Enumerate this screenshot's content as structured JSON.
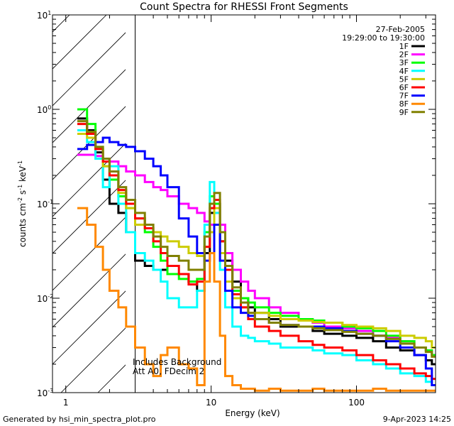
{
  "chart_data": {
    "type": "line",
    "title": "Count Spectra for RHESSI Front Segments",
    "xlabel": "Energy (keV)",
    "ylabel": "counts cm",
    "ylabel_sup1": "-2",
    "ylabel_mid": " s",
    "ylabel_sup2": "-1",
    "ylabel_end": " keV",
    "ylabel_sup3": "-1",
    "x_scale": "log",
    "y_scale": "log",
    "xlim": [
      0.81,
      350
    ],
    "ylim": [
      0.001,
      10
    ],
    "x_ticks": [
      {
        "value": 1,
        "label": "1"
      },
      {
        "value": 10,
        "label": "10"
      },
      {
        "value": 100,
        "label": "100"
      }
    ],
    "y_ticks": [
      {
        "value": 10,
        "base": "10",
        "exp": "1"
      },
      {
        "value": 1,
        "base": "10",
        "exp": "0"
      },
      {
        "value": 0.1,
        "base": "10",
        "exp": "-1"
      },
      {
        "value": 0.01,
        "base": "10",
        "exp": "-2"
      },
      {
        "value": 0.001,
        "base": "10",
        "exp": "-3"
      }
    ],
    "date": "27-Feb-2005",
    "time_range": "19:29:00 to 19:30:00",
    "annotation_lines": [
      "Includes Background",
      "Att A0, FDecim 2"
    ],
    "hatched_region_end": 3,
    "series": [
      {
        "name": "1F",
        "color": "#000000",
        "x": [
          1.2,
          1.4,
          1.6,
          1.8,
          2.0,
          2.3,
          2.6,
          3.0,
          3.5,
          4.0,
          4.5,
          5.0,
          6.0,
          7.0,
          8.0,
          9.0,
          9.8,
          10.5,
          11.5,
          12.5,
          14,
          16,
          18,
          20,
          25,
          30,
          40,
          50,
          60,
          80,
          100,
          130,
          160,
          200,
          250,
          300,
          330
        ],
        "y": [
          0.8,
          0.6,
          0.35,
          0.18,
          0.1,
          0.08,
          0.05,
          0.025,
          0.022,
          0.02,
          0.02,
          0.018,
          0.018,
          0.015,
          0.012,
          0.03,
          0.08,
          0.1,
          0.04,
          0.025,
          0.015,
          0.01,
          0.008,
          0.007,
          0.006,
          0.005,
          0.005,
          0.0045,
          0.0042,
          0.004,
          0.0038,
          0.0035,
          0.003,
          0.0028,
          0.0025,
          0.0022,
          0.002
        ]
      },
      {
        "name": "2F",
        "color": "#ff00ff",
        "x": [
          1.2,
          1.4,
          1.6,
          1.8,
          2.0,
          2.3,
          2.6,
          3.0,
          3.5,
          4.0,
          4.5,
          5.0,
          6.0,
          7.0,
          8.0,
          9.0,
          9.8,
          10.5,
          11.5,
          12.5,
          14,
          16,
          18,
          20,
          25,
          30,
          40,
          50,
          60,
          80,
          100,
          130,
          160,
          200,
          250,
          300,
          330
        ],
        "y": [
          0.33,
          0.33,
          0.32,
          0.3,
          0.28,
          0.25,
          0.22,
          0.2,
          0.17,
          0.15,
          0.14,
          0.12,
          0.1,
          0.09,
          0.08,
          0.065,
          0.06,
          0.08,
          0.06,
          0.03,
          0.02,
          0.015,
          0.012,
          0.01,
          0.008,
          0.007,
          0.006,
          0.0055,
          0.005,
          0.0048,
          0.0045,
          0.004,
          0.0038,
          0.0035,
          0.003,
          0.0028,
          0.0025
        ]
      },
      {
        "name": "3F",
        "color": "#00ff00",
        "x": [
          1.2,
          1.4,
          1.6,
          1.8,
          2.0,
          2.3,
          2.6,
          3.0,
          3.5,
          4.0,
          4.5,
          5.0,
          6.0,
          7.0,
          8.0,
          9.0,
          9.8,
          10.5,
          11.5,
          12.5,
          14,
          16,
          18,
          20,
          25,
          30,
          40,
          50,
          60,
          80,
          100,
          130,
          160,
          200,
          250,
          300,
          330
        ],
        "y": [
          1.0,
          0.7,
          0.4,
          0.25,
          0.18,
          0.12,
          0.09,
          0.07,
          0.05,
          0.035,
          0.025,
          0.018,
          0.016,
          0.015,
          0.016,
          0.05,
          0.12,
          0.1,
          0.04,
          0.02,
          0.012,
          0.01,
          0.009,
          0.008,
          0.007,
          0.0065,
          0.006,
          0.0058,
          0.0055,
          0.005,
          0.0048,
          0.0045,
          0.004,
          0.0035,
          0.003,
          0.0028,
          0.0025
        ]
      },
      {
        "name": "4F",
        "color": "#00ffff",
        "x": [
          1.2,
          1.4,
          1.6,
          1.8,
          2.0,
          2.3,
          2.6,
          3.0,
          3.5,
          4.0,
          4.5,
          5.0,
          6.0,
          7.0,
          8.0,
          9.0,
          9.8,
          10.5,
          11.5,
          12.5,
          14,
          16,
          18,
          20,
          25,
          30,
          40,
          50,
          60,
          80,
          100,
          130,
          160,
          200,
          250,
          300,
          330
        ],
        "y": [
          0.6,
          0.45,
          0.3,
          0.15,
          0.25,
          0.1,
          0.05,
          0.03,
          0.025,
          0.02,
          0.015,
          0.01,
          0.008,
          0.008,
          0.012,
          0.06,
          0.17,
          0.08,
          0.02,
          0.008,
          0.005,
          0.004,
          0.0038,
          0.0035,
          0.0033,
          0.003,
          0.003,
          0.0028,
          0.0026,
          0.0025,
          0.0022,
          0.002,
          0.0018,
          0.0016,
          0.0015,
          0.0013,
          0.0012
        ]
      },
      {
        "name": "5F",
        "color": "#cccc00",
        "x": [
          1.2,
          1.4,
          1.6,
          1.8,
          2.0,
          2.3,
          2.6,
          3.0,
          3.5,
          4.0,
          4.5,
          5.0,
          6.0,
          7.0,
          8.0,
          9.0,
          9.8,
          10.5,
          11.5,
          12.5,
          14,
          16,
          18,
          20,
          25,
          30,
          40,
          50,
          60,
          80,
          100,
          130,
          160,
          200,
          250,
          300,
          330
        ],
        "y": [
          0.55,
          0.5,
          0.38,
          0.25,
          0.2,
          0.13,
          0.09,
          0.06,
          0.055,
          0.05,
          0.045,
          0.04,
          0.035,
          0.03,
          0.028,
          0.035,
          0.05,
          0.09,
          0.03,
          0.015,
          0.01,
          0.008,
          0.007,
          0.007,
          0.0065,
          0.006,
          0.0058,
          0.0056,
          0.0055,
          0.0052,
          0.005,
          0.0048,
          0.0045,
          0.004,
          0.0038,
          0.0035,
          0.003
        ]
      },
      {
        "name": "6F",
        "color": "#ff0000",
        "x": [
          1.2,
          1.4,
          1.6,
          1.8,
          2.0,
          2.3,
          2.6,
          3.0,
          3.5,
          4.0,
          4.5,
          5.0,
          6.0,
          7.0,
          8.0,
          9.0,
          9.8,
          10.5,
          11.5,
          12.5,
          14,
          16,
          18,
          20,
          25,
          30,
          40,
          50,
          60,
          80,
          100,
          130,
          160,
          200,
          250,
          300,
          330
        ],
        "y": [
          0.7,
          0.55,
          0.38,
          0.28,
          0.2,
          0.14,
          0.1,
          0.07,
          0.055,
          0.04,
          0.03,
          0.022,
          0.018,
          0.014,
          0.015,
          0.035,
          0.09,
          0.11,
          0.04,
          0.02,
          0.011,
          0.008,
          0.006,
          0.005,
          0.0045,
          0.004,
          0.0035,
          0.0032,
          0.003,
          0.0028,
          0.0025,
          0.0022,
          0.002,
          0.0018,
          0.0016,
          0.0015,
          0.0014
        ]
      },
      {
        "name": "7F",
        "color": "#0000ff",
        "x": [
          1.2,
          1.4,
          1.6,
          1.8,
          2.0,
          2.3,
          2.6,
          3.0,
          3.5,
          4.0,
          4.5,
          5.0,
          6.0,
          7.0,
          8.0,
          9.0,
          9.8,
          10.5,
          11.5,
          12.5,
          14,
          16,
          18,
          20,
          25,
          30,
          40,
          50,
          60,
          80,
          100,
          130,
          160,
          200,
          250,
          300,
          330
        ],
        "y": [
          0.38,
          0.42,
          0.45,
          0.5,
          0.45,
          0.42,
          0.4,
          0.36,
          0.3,
          0.25,
          0.2,
          0.15,
          0.07,
          0.045,
          0.03,
          0.025,
          0.03,
          0.06,
          0.025,
          0.012,
          0.008,
          0.007,
          0.0065,
          0.006,
          0.0055,
          0.0052,
          0.005,
          0.005,
          0.0048,
          0.0045,
          0.0042,
          0.004,
          0.0035,
          0.003,
          0.0025,
          0.0018,
          0.0012
        ]
      },
      {
        "name": "8F",
        "color": "#ff8800",
        "x": [
          1.2,
          1.4,
          1.6,
          1.8,
          2.0,
          2.3,
          2.6,
          3.0,
          3.5,
          4.0,
          4.5,
          5.0,
          6.0,
          7.0,
          8.0,
          9.0,
          9.8,
          10.5,
          11.5,
          12.5,
          14,
          16,
          18,
          20,
          25,
          30,
          40,
          50,
          60,
          80,
          100,
          130,
          160,
          200,
          250,
          300,
          330
        ],
        "y": [
          0.09,
          0.06,
          0.035,
          0.02,
          0.012,
          0.008,
          0.005,
          0.003,
          0.002,
          0.0015,
          0.0025,
          0.003,
          0.002,
          0.0018,
          0.0012,
          0.015,
          0.03,
          0.015,
          0.004,
          0.0015,
          0.0012,
          0.0011,
          0.0011,
          0.00105,
          0.0011,
          0.00105,
          0.00105,
          0.0011,
          0.00105,
          0.00105,
          0.00105,
          0.0011,
          0.00105,
          0.00105,
          0.00105,
          0.00105,
          0.00105
        ]
      },
      {
        "name": "9F",
        "color": "#808000",
        "x": [
          1.2,
          1.4,
          1.6,
          1.8,
          2.0,
          2.3,
          2.6,
          3.0,
          3.5,
          4.0,
          4.5,
          5.0,
          6.0,
          7.0,
          8.0,
          9.0,
          9.8,
          10.5,
          11.5,
          12.5,
          14,
          16,
          18,
          20,
          25,
          30,
          40,
          50,
          60,
          80,
          100,
          130,
          160,
          200,
          250,
          300,
          330
        ],
        "y": [
          0.75,
          0.58,
          0.4,
          0.3,
          0.22,
          0.15,
          0.11,
          0.08,
          0.06,
          0.045,
          0.035,
          0.028,
          0.025,
          0.02,
          0.02,
          0.045,
          0.1,
          0.13,
          0.05,
          0.022,
          0.013,
          0.009,
          0.007,
          0.006,
          0.0055,
          0.0052,
          0.005,
          0.0048,
          0.0046,
          0.0044,
          0.0042,
          0.004,
          0.0037,
          0.0033,
          0.003,
          0.0027,
          0.0024
        ]
      }
    ]
  },
  "footer": {
    "generated_by": "Generated by hsi_min_spectra_plot.pro",
    "timestamp": "9-Apr-2023 14:25"
  }
}
